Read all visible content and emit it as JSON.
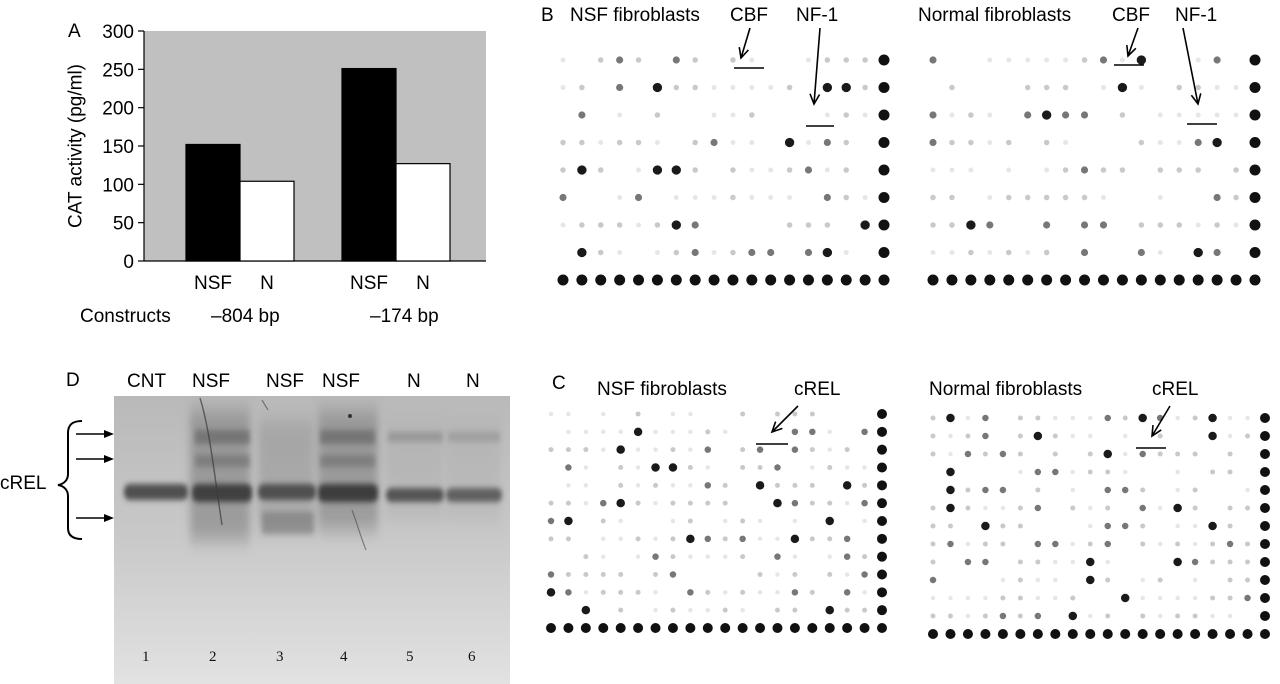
{
  "panel_a": {
    "letter": "A",
    "ylabel": "CAT activity (pg/ml)",
    "constructs_label": "Constructs",
    "group_labels": [
      "–804 bp",
      "–174 bp"
    ],
    "background_color": "#c0c0c0",
    "colors": {
      "NSF": "#000000",
      "N": "#ffffff"
    }
  },
  "panel_b": {
    "letter": "B",
    "left_title": "NSF fibroblasts",
    "right_title": "Normal fibroblasts",
    "markers": [
      "CBF",
      "NF-1"
    ]
  },
  "panel_c": {
    "letter": "C",
    "left_title": "NSF fibroblasts",
    "right_title": "Normal fibroblasts",
    "marker": "cREL"
  },
  "panel_d": {
    "letter": "D",
    "lane_titles": [
      "CNT",
      "NSF",
      "NSF",
      "NSF",
      "N",
      "N"
    ],
    "lane_numbers": [
      "1",
      "2",
      "3",
      "4",
      "5",
      "6"
    ],
    "band_label": "cREL"
  },
  "chart_data": {
    "type": "bar",
    "categories": [
      "–804 bp",
      "–174 bp"
    ],
    "bar_labels": [
      "NSF",
      "N",
      "NSF",
      "N"
    ],
    "series": [
      {
        "name": "NSF",
        "values": [
          152,
          251
        ]
      },
      {
        "name": "N",
        "values": [
          104,
          127
        ]
      }
    ],
    "title": "",
    "xlabel": "Constructs",
    "ylabel": "CAT activity (pg/ml)",
    "ylim": [
      0,
      300
    ],
    "yticks": [
      "0",
      "50",
      "100",
      "150",
      "200",
      "250",
      "300"
    ],
    "grid": false
  }
}
